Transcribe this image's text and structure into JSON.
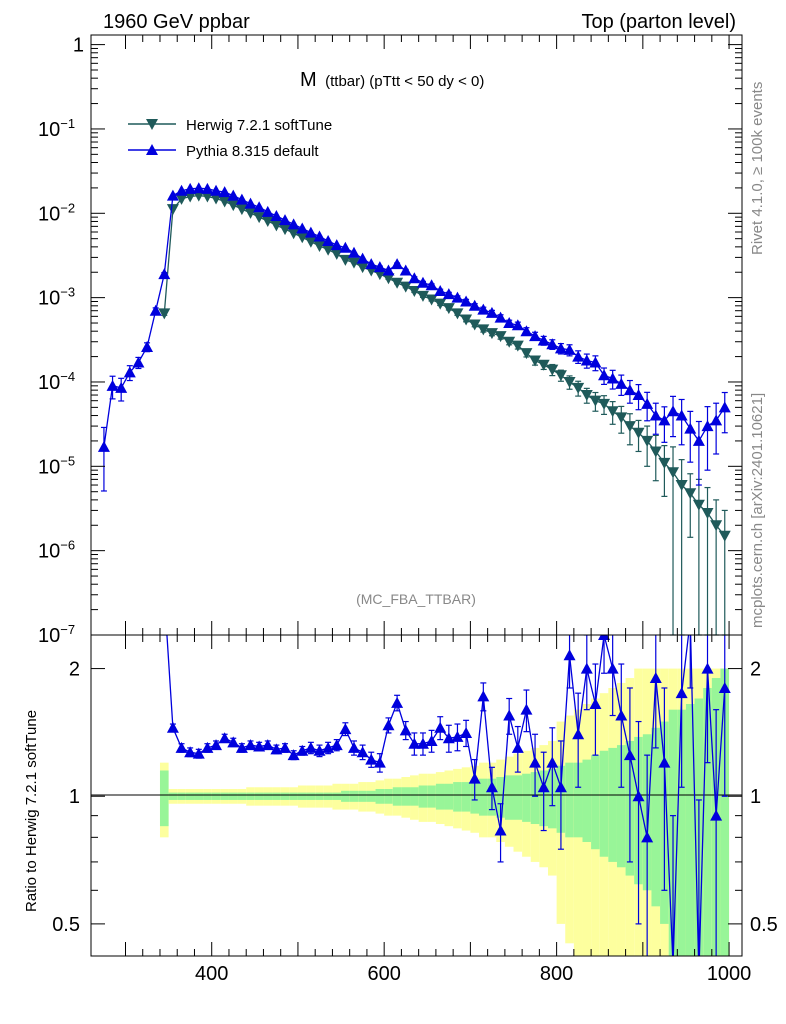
{
  "header": {
    "left": "1960 GeV ppbar",
    "right": "Top (parton level)"
  },
  "side_labels": {
    "rivet": "Rivet 4.1.0, ≥ 100k events",
    "mcplots": "mcplots.cern.ch [arXiv:2401.10621]"
  },
  "chart_data": {
    "type": "line",
    "title": "M",
    "subtitle": "(ttbar) (pTtt < 50 dy < 0)",
    "watermark": "(MC_FBA_TTBAR)",
    "xlabel": "",
    "xlim": [
      260,
      1015
    ],
    "x_ticks": [
      "400",
      "600",
      "800",
      "1000"
    ],
    "main": {
      "yscale": "log",
      "ylim": [
        1e-07,
        1.3
      ],
      "y_ticks": [
        {
          "value": 1,
          "base": "1",
          "exp": ""
        },
        {
          "value": 0.1,
          "base": "10",
          "exp": "−1"
        },
        {
          "value": 0.01,
          "base": "10",
          "exp": "−2"
        },
        {
          "value": 0.001,
          "base": "10",
          "exp": "−3"
        },
        {
          "value": 0.0001,
          "base": "10",
          "exp": "−4"
        },
        {
          "value": 1e-05,
          "base": "10",
          "exp": "−5"
        },
        {
          "value": 1e-06,
          "base": "10",
          "exp": "−6"
        },
        {
          "value": 1e-07,
          "base": "10",
          "exp": "−7"
        }
      ]
    },
    "legend": [
      {
        "name": "Herwig 7.2.1 softTune",
        "color": "#1f5a5a",
        "marker": "triangle-down"
      },
      {
        "name": "Pythia 8.315 default",
        "color": "#0000dd",
        "marker": "triangle-up"
      }
    ],
    "series": [
      {
        "name": "Herwig 7.2.1 softTune",
        "color": "#1f5a5a",
        "x": [
          345,
          355,
          365,
          375,
          385,
          395,
          405,
          415,
          425,
          435,
          445,
          455,
          465,
          475,
          485,
          495,
          505,
          515,
          525,
          535,
          545,
          555,
          565,
          575,
          585,
          595,
          605,
          615,
          625,
          635,
          645,
          655,
          665,
          675,
          685,
          695,
          705,
          715,
          725,
          735,
          745,
          755,
          765,
          775,
          785,
          795,
          805,
          815,
          825,
          835,
          845,
          855,
          865,
          875,
          885,
          895,
          905,
          915,
          925,
          935,
          945,
          955,
          965,
          975,
          985,
          995
        ],
        "y": [
          0.00065,
          0.0112,
          0.0148,
          0.0158,
          0.0162,
          0.0158,
          0.015,
          0.0138,
          0.0125,
          0.0112,
          0.0101,
          0.009,
          0.0081,
          0.0072,
          0.0065,
          0.0058,
          0.0052,
          0.0046,
          0.0041,
          0.0037,
          0.0033,
          0.0028,
          0.0026,
          0.0023,
          0.0021,
          0.0019,
          0.0017,
          0.0015,
          0.00135,
          0.0012,
          0.00105,
          0.00095,
          0.00085,
          0.00075,
          0.00065,
          0.00055,
          0.00048,
          0.00042,
          0.00038,
          0.00035,
          0.0003,
          0.00027,
          0.00022,
          0.00018,
          0.00016,
          0.00014,
          0.00012,
          0.0001,
          8.5e-05,
          7e-05,
          6e-05,
          5.5e-05,
          4.5e-05,
          3.8e-05,
          3e-05,
          2.5e-05,
          2e-05,
          1.5e-05,
          1.1e-05,
          8.5e-06,
          6e-06,
          4.8e-06,
          3.5e-06,
          2.8e-06,
          2e-06,
          1.5e-06
        ],
        "yerr_rel": [
          0.05,
          0.01,
          0.01,
          0.01,
          0.01,
          0.01,
          0.01,
          0.01,
          0.01,
          0.01,
          0.01,
          0.01,
          0.01,
          0.01,
          0.01,
          0.01,
          0.01,
          0.02,
          0.02,
          0.02,
          0.02,
          0.02,
          0.02,
          0.02,
          0.02,
          0.02,
          0.03,
          0.03,
          0.03,
          0.04,
          0.04,
          0.04,
          0.05,
          0.05,
          0.05,
          0.06,
          0.06,
          0.07,
          0.07,
          0.08,
          0.08,
          0.09,
          0.1,
          0.12,
          0.12,
          0.15,
          0.15,
          0.18,
          0.2,
          0.2,
          0.25,
          0.25,
          0.3,
          0.35,
          0.4,
          0.4,
          0.5,
          0.55,
          0.6,
          1,
          1,
          0.7,
          1,
          1,
          1,
          1
        ]
      },
      {
        "name": "Pythia 8.315 default",
        "color": "#0000dd",
        "x": [
          275,
          285,
          295,
          305,
          315,
          325,
          335,
          345,
          355,
          365,
          375,
          385,
          395,
          405,
          415,
          425,
          435,
          445,
          455,
          465,
          475,
          485,
          495,
          505,
          515,
          525,
          535,
          545,
          555,
          565,
          575,
          585,
          595,
          605,
          615,
          625,
          635,
          645,
          655,
          665,
          675,
          685,
          695,
          705,
          715,
          725,
          735,
          745,
          755,
          765,
          775,
          785,
          795,
          805,
          815,
          825,
          835,
          845,
          855,
          865,
          875,
          885,
          895,
          905,
          915,
          925,
          935,
          945,
          955,
          965,
          975,
          985,
          995
        ],
        "y": [
          1.7e-05,
          9e-05,
          8.5e-05,
          0.00013,
          0.00017,
          0.00026,
          0.0007,
          0.0019,
          0.0162,
          0.0185,
          0.0195,
          0.0198,
          0.0195,
          0.0185,
          0.0178,
          0.0162,
          0.0145,
          0.013,
          0.0118,
          0.0104,
          0.0093,
          0.0083,
          0.0074,
          0.0066,
          0.0059,
          0.0053,
          0.0047,
          0.0042,
          0.0039,
          0.0034,
          0.0029,
          0.0025,
          0.0023,
          0.0021,
          0.0025,
          0.0021,
          0.0017,
          0.0015,
          0.0014,
          0.0012,
          0.0011,
          0.001,
          0.0009,
          0.0008,
          0.00072,
          0.00066,
          0.00058,
          0.0005,
          0.00047,
          0.0004,
          0.00035,
          0.00031,
          0.00028,
          0.00025,
          0.00024,
          0.0002,
          0.00018,
          0.00017,
          0.00012,
          0.00011,
          9.5e-05,
          8e-05,
          7e-05,
          5.5e-05,
          4e-05,
          3.5e-05,
          4.5e-05,
          4e-05,
          2.8e-05,
          2e-05,
          3e-05,
          3.5e-05,
          5e-05
        ],
        "yerr_rel": [
          0.7,
          0.3,
          0.3,
          0.2,
          0.15,
          0.12,
          0.08,
          0.04,
          0.01,
          0.01,
          0.01,
          0.01,
          0.01,
          0.01,
          0.01,
          0.01,
          0.01,
          0.01,
          0.01,
          0.01,
          0.01,
          0.01,
          0.01,
          0.02,
          0.02,
          0.02,
          0.02,
          0.02,
          0.02,
          0.02,
          0.02,
          0.02,
          0.03,
          0.03,
          0.03,
          0.03,
          0.04,
          0.04,
          0.04,
          0.05,
          0.05,
          0.05,
          0.06,
          0.06,
          0.07,
          0.07,
          0.08,
          0.08,
          0.09,
          0.1,
          0.11,
          0.12,
          0.13,
          0.14,
          0.15,
          0.17,
          0.19,
          0.2,
          0.22,
          0.25,
          0.27,
          0.3,
          0.33,
          0.37,
          0.4,
          0.45,
          0.5,
          0.55,
          0.6,
          0.7,
          0.7,
          0.6,
          0.5
        ]
      }
    ],
    "ratio": {
      "ylabel": "Ratio to Herwig 7.2.1 softTune",
      "yscale": "log",
      "ylim": [
        0.42,
        2.4
      ],
      "y_ticks": [
        "0.5",
        "1",
        "2"
      ],
      "reference": 1,
      "band_inner_color": "#98f598",
      "band_outer_color": "#fdff9e",
      "band_x": [
        345,
        355,
        365,
        375,
        385,
        395,
        405,
        415,
        425,
        435,
        445,
        455,
        465,
        475,
        485,
        495,
        505,
        515,
        525,
        535,
        545,
        555,
        565,
        575,
        585,
        595,
        605,
        615,
        625,
        635,
        645,
        655,
        665,
        675,
        685,
        695,
        705,
        715,
        725,
        735,
        745,
        755,
        765,
        775,
        785,
        795,
        805,
        815,
        825,
        835,
        845,
        855,
        865,
        875,
        885,
        895,
        905,
        915,
        925,
        935,
        945,
        955,
        965,
        975,
        985,
        995
      ],
      "band_inner": [
        0.15,
        0.02,
        0.02,
        0.02,
        0.02,
        0.02,
        0.02,
        0.02,
        0.02,
        0.02,
        0.02,
        0.02,
        0.02,
        0.02,
        0.02,
        0.02,
        0.02,
        0.02,
        0.02,
        0.02,
        0.02,
        0.03,
        0.03,
        0.03,
        0.03,
        0.04,
        0.04,
        0.05,
        0.05,
        0.05,
        0.06,
        0.06,
        0.07,
        0.07,
        0.08,
        0.08,
        0.09,
        0.1,
        0.1,
        0.11,
        0.12,
        0.12,
        0.13,
        0.14,
        0.15,
        0.16,
        0.18,
        0.2,
        0.2,
        0.22,
        0.25,
        0.28,
        0.3,
        0.32,
        0.35,
        0.38,
        0.4,
        0.45,
        0.5,
        0.6,
        0.6,
        0.65,
        0.7,
        0.8,
        0.9,
        1.0
      ],
      "band_outer": [
        0.2,
        0.04,
        0.04,
        0.04,
        0.04,
        0.04,
        0.04,
        0.04,
        0.04,
        0.04,
        0.05,
        0.05,
        0.05,
        0.05,
        0.05,
        0.05,
        0.06,
        0.06,
        0.06,
        0.06,
        0.07,
        0.07,
        0.07,
        0.08,
        0.08,
        0.09,
        0.1,
        0.1,
        0.11,
        0.12,
        0.13,
        0.13,
        0.14,
        0.15,
        0.16,
        0.17,
        0.18,
        0.2,
        0.2,
        0.22,
        0.24,
        0.26,
        0.28,
        0.3,
        0.32,
        0.35,
        0.5,
        0.55,
        0.6,
        0.65,
        0.7,
        0.75,
        0.8,
        0.85,
        0.9,
        1.0,
        1.0,
        1.0,
        1.0,
        1.0,
        1.0,
        1.0,
        1.0,
        1.0,
        1.0,
        1.0
      ],
      "pythia_x": [
        345,
        355,
        365,
        375,
        385,
        395,
        405,
        415,
        425,
        435,
        445,
        455,
        465,
        475,
        485,
        495,
        505,
        515,
        525,
        535,
        545,
        555,
        565,
        575,
        585,
        595,
        605,
        615,
        625,
        635,
        645,
        655,
        665,
        675,
        685,
        695,
        705,
        715,
        725,
        735,
        745,
        755,
        765,
        775,
        785,
        795,
        805,
        815,
        825,
        835,
        845,
        855,
        865,
        875,
        885,
        895,
        905,
        915,
        925,
        935,
        945,
        955,
        965,
        975,
        985,
        995
      ],
      "pythia_y": [
        3.0,
        1.45,
        1.3,
        1.27,
        1.26,
        1.3,
        1.32,
        1.37,
        1.34,
        1.3,
        1.32,
        1.31,
        1.32,
        1.29,
        1.3,
        1.25,
        1.28,
        1.3,
        1.28,
        1.3,
        1.32,
        1.44,
        1.3,
        1.27,
        1.22,
        1.2,
        1.47,
        1.66,
        1.43,
        1.33,
        1.33,
        1.35,
        1.45,
        1.37,
        1.38,
        1.41,
        1.1,
        1.72,
        1.05,
        0.83,
        1.55,
        1.3,
        1.6,
        1.2,
        1.05,
        1.2,
        1.05,
        2.15,
        1.4,
        2.0,
        1.65,
        2.4,
        2.0,
        1.55,
        1.25,
        1.0,
        0.8,
        1.9,
        1.2,
        0.4,
        1.75,
        2.6,
        0.38,
        2.0,
        0.9,
        1.8
      ],
      "pythia_err": [
        0.6,
        0.03,
        0.03,
        0.03,
        0.03,
        0.03,
        0.03,
        0.03,
        0.03,
        0.03,
        0.03,
        0.03,
        0.03,
        0.03,
        0.03,
        0.03,
        0.03,
        0.04,
        0.04,
        0.04,
        0.04,
        0.05,
        0.05,
        0.05,
        0.05,
        0.06,
        0.06,
        0.07,
        0.07,
        0.08,
        0.08,
        0.08,
        0.09,
        0.1,
        0.1,
        0.1,
        0.12,
        0.13,
        0.12,
        0.13,
        0.15,
        0.16,
        0.18,
        0.2,
        0.22,
        0.25,
        0.3,
        0.35,
        0.35,
        0.4,
        0.4,
        0.45,
        0.45,
        0.5,
        0.55,
        0.5,
        0.45,
        0.6,
        0.6,
        0.5,
        0.7,
        0.8,
        0.6,
        0.8,
        0.7,
        0.8
      ]
    }
  }
}
